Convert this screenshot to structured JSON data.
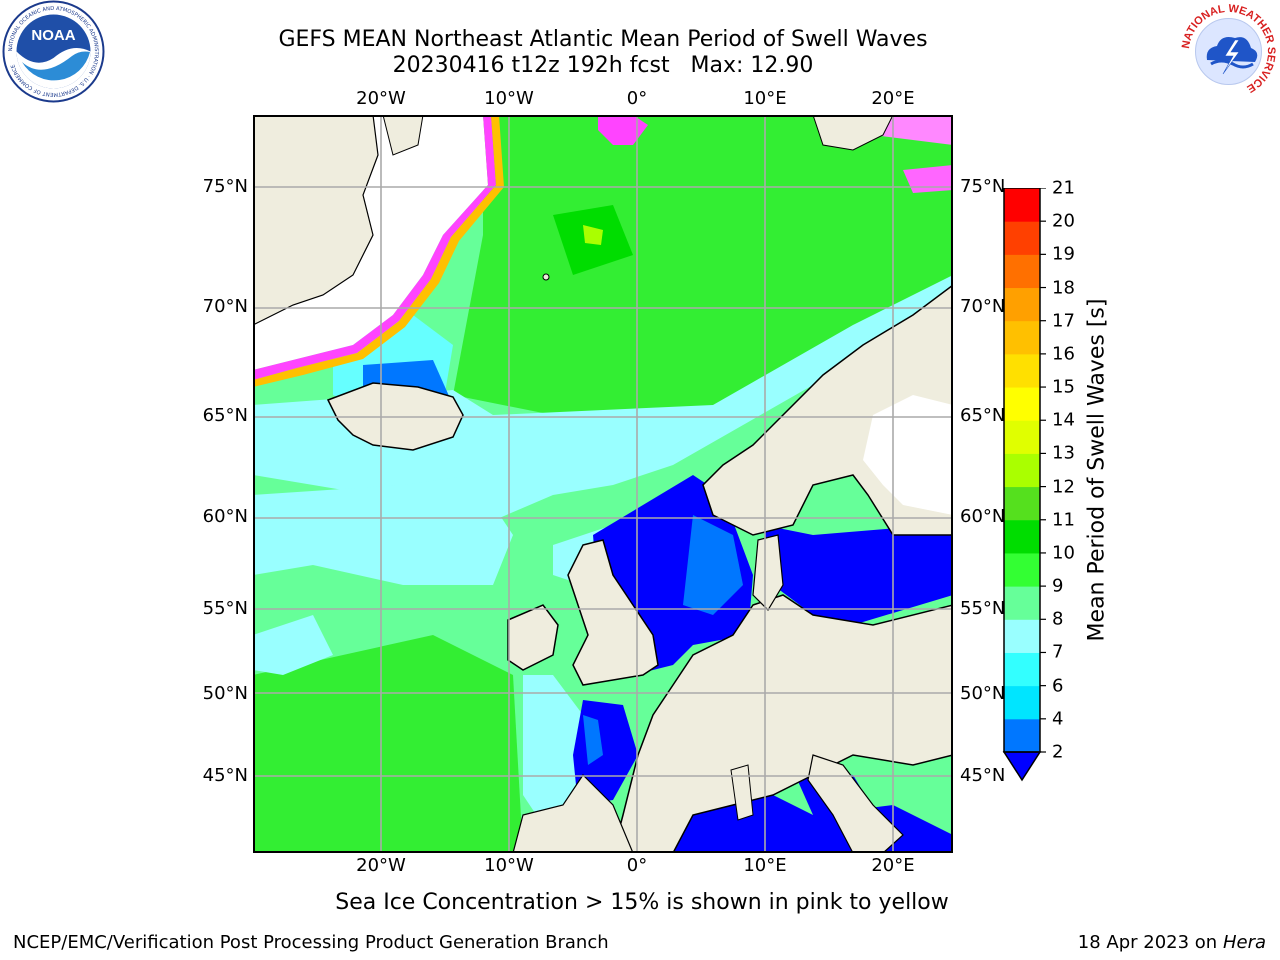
{
  "title": {
    "line1": "GEFS MEAN Northeast Atlantic Mean Period of Swell Waves",
    "line2": "20230416 t12z 192h fcst   Max: 12.90"
  },
  "map": {
    "lon_ticks_top": [
      "20°W",
      "10°W",
      "0°",
      "10°E",
      "20°E"
    ],
    "lon_ticks_bottom": [
      "20°W",
      "10°W",
      "0°",
      "10°E",
      "20°E"
    ],
    "lat_ticks_left": [
      "75°N",
      "70°N",
      "65°N",
      "60°N",
      "55°N",
      "50°N",
      "45°N"
    ],
    "lat_ticks_right": [
      "75°N",
      "70°N",
      "65°N",
      "60°N",
      "55°N",
      "50°N",
      "45°N"
    ],
    "land_color": "#efedde",
    "ice_note": "Sea Ice Concentration > 15% is shown in pink to yellow"
  },
  "colorbar": {
    "label": "Mean Period of Swell Waves [s]",
    "ticks": [
      "2",
      "4",
      "6",
      "7",
      "8",
      "9",
      "10",
      "11",
      "12",
      "13",
      "14",
      "15",
      "16",
      "17",
      "18",
      "19",
      "20",
      "21"
    ],
    "colors": [
      "#0000ff",
      "#0077ff",
      "#00e5ff",
      "#33ffff",
      "#99ffff",
      "#66ff99",
      "#33ff33",
      "#00dd00",
      "#55e01e",
      "#aaff00",
      "#e0ff00",
      "#ffff00",
      "#ffe000",
      "#ffc000",
      "#ffa000",
      "#ff7000",
      "#ff4000",
      "#ff0000"
    ]
  },
  "logos": {
    "noaa": {
      "text": "NOAA",
      "ring_text": "NATIONAL OCEANIC AND ATMOSPHERIC ADMINISTRATION · U.S. DEPARTMENT OF COMMERCE"
    },
    "nws": {
      "ring_text": "NATIONAL WEATHER SERVICE"
    }
  },
  "footer": {
    "left": "NCEP/EMC/Verification Post Processing Product Generation Branch",
    "right_date": "18 Apr 2023 on ",
    "right_host": "Hera"
  }
}
